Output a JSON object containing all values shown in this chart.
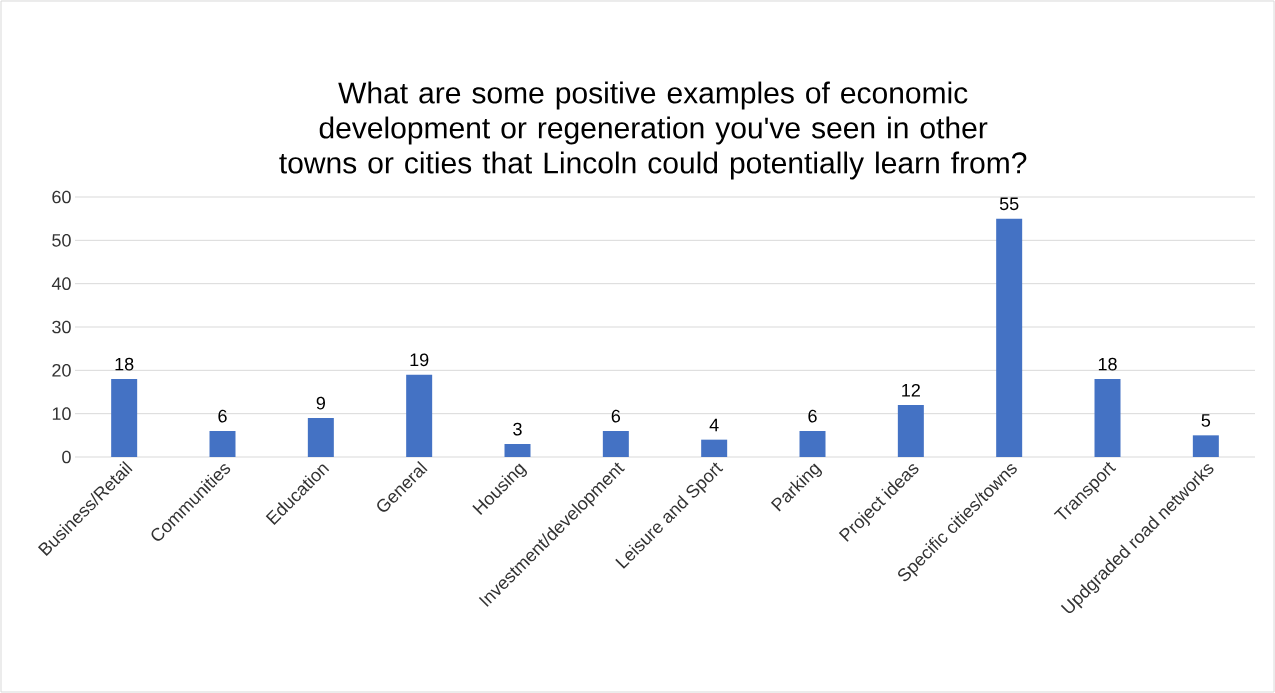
{
  "chart_data": {
    "type": "bar",
    "title": "What are some positive examples of economic development or regeneration you've seen in other towns or cities that Lincoln could potentially learn from?",
    "categories": [
      "Business/Retail",
      "Communities",
      "Education",
      "General",
      "Housing",
      "Investment/development",
      "Leisure and Sport",
      "Parking",
      "Project ideas",
      "Specific cities/towns",
      "Transport",
      "Updgraded road networks"
    ],
    "values": [
      18,
      6,
      9,
      19,
      3,
      6,
      4,
      6,
      12,
      55,
      18,
      5
    ],
    "color": "#4472c4",
    "ylim": [
      0,
      60
    ],
    "yticks": [
      0,
      10,
      20,
      30,
      40,
      50,
      60
    ],
    "grid": "y",
    "data_labels": true
  }
}
